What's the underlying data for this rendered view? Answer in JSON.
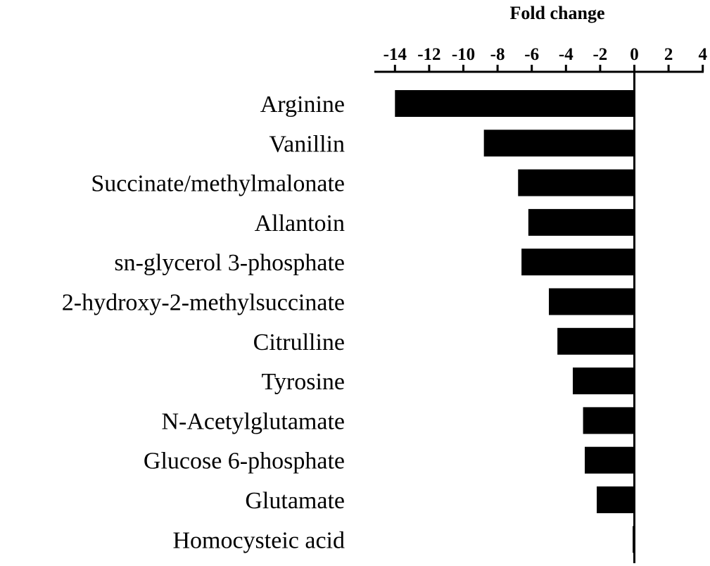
{
  "chart_data": {
    "type": "bar",
    "orientation": "horizontal",
    "title": "",
    "xlabel": "Fold change",
    "ylabel": "",
    "xlim": [
      -15,
      4
    ],
    "x_ticks": [
      -14,
      -12,
      -10,
      -8,
      -6,
      -4,
      -2,
      0,
      2,
      4
    ],
    "x_tick_labels": [
      "-14",
      "-12",
      "-10",
      "-8",
      "-6",
      "-4",
      "-2",
      "0",
      "2",
      "4"
    ],
    "axis_position": "top",
    "grid": false,
    "bar_color": "#000000",
    "categories": [
      "Arginine",
      "Vanillin",
      "Succinate/methylmalonate",
      "Allantoin",
      "sn-glycerol 3-phosphate",
      "2-hydroxy-2-methylsuccinate",
      "Citrulline",
      "Tyrosine",
      "N-Acetylglutamate",
      "Glucose 6-phosphate",
      "Glutamate",
      "Homocysteic acid"
    ],
    "values": [
      -14.0,
      -8.8,
      -6.8,
      -6.2,
      -6.6,
      -5.0,
      -4.5,
      -3.6,
      -3.0,
      -2.9,
      -2.2,
      -0.1
    ]
  }
}
